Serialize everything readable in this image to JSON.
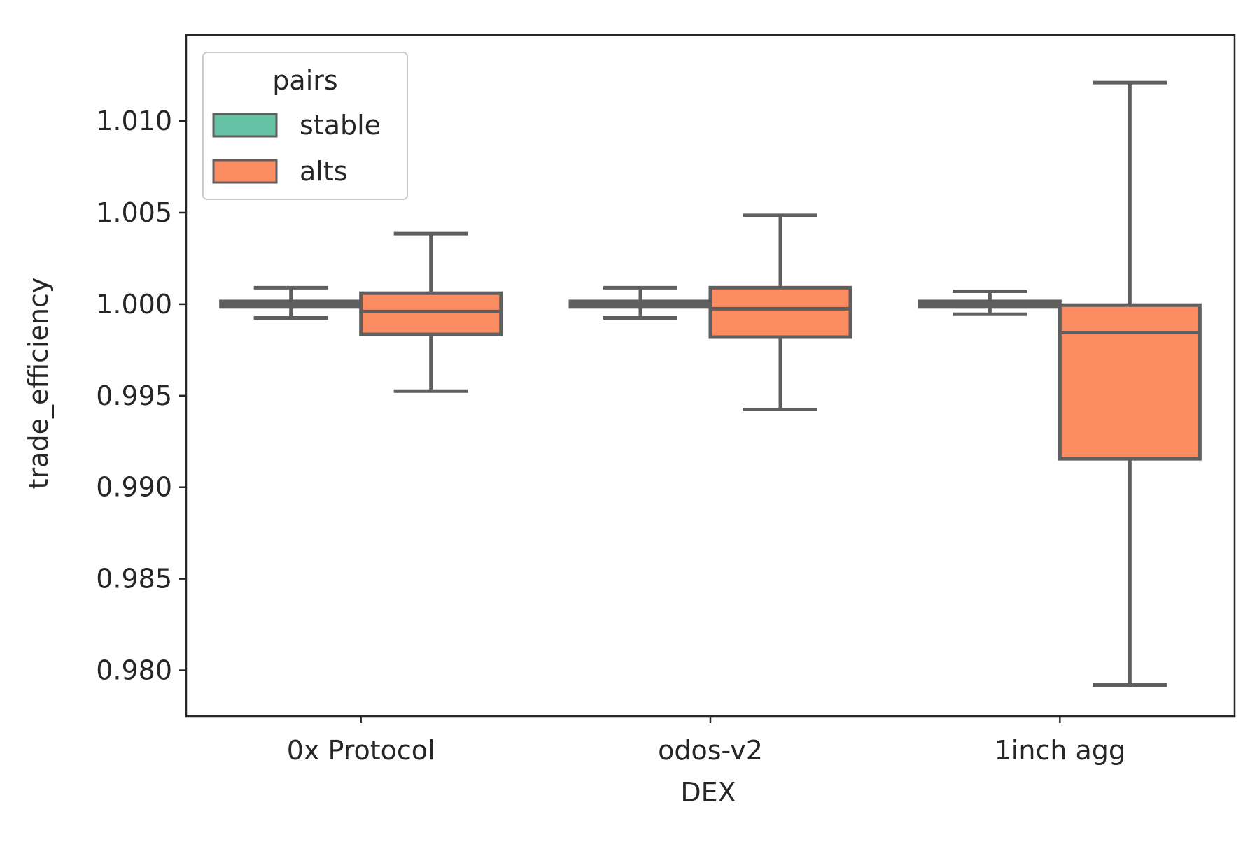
{
  "chart_data": {
    "type": "box",
    "title": "",
    "xlabel": "DEX",
    "ylabel": "trade_efficiency",
    "categories": [
      "0x Protocol",
      "odos-v2",
      "1inch agg"
    ],
    "ylim": [
      0.9775,
      1.0147
    ],
    "yticks": [
      0.98,
      0.985,
      0.99,
      0.995,
      1.0,
      1.005,
      1.01
    ],
    "ytick_labels": [
      "0.980",
      "0.985",
      "0.990",
      "0.995",
      "1.000",
      "1.005",
      "1.010"
    ],
    "grid": false,
    "legend": {
      "title": "pairs",
      "position": "top-left",
      "entries": [
        "stable",
        "alts"
      ]
    },
    "series": [
      {
        "name": "stable",
        "color": "#66c2a5",
        "boxes": [
          {
            "whislo": 0.99925,
            "q1": 0.99985,
            "med": 1.0,
            "q3": 1.00015,
            "whishi": 1.0009
          },
          {
            "whislo": 0.99925,
            "q1": 0.99985,
            "med": 1.0,
            "q3": 1.00015,
            "whishi": 1.0009
          },
          {
            "whislo": 0.99945,
            "q1": 0.99985,
            "med": 1.0,
            "q3": 1.00015,
            "whishi": 1.0007
          }
        ]
      },
      {
        "name": "alts",
        "color": "#fc8d62",
        "boxes": [
          {
            "whislo": 0.99525,
            "q1": 0.99835,
            "med": 0.9996,
            "q3": 1.0006,
            "whishi": 1.00385
          },
          {
            "whislo": 0.99425,
            "q1": 0.9982,
            "med": 0.99975,
            "q3": 1.0009,
            "whishi": 1.00485
          },
          {
            "whislo": 0.9792,
            "q1": 0.99155,
            "med": 0.99845,
            "q3": 0.99995,
            "whishi": 1.0121
          }
        ]
      }
    ],
    "line_color": "#5f5f5f"
  }
}
